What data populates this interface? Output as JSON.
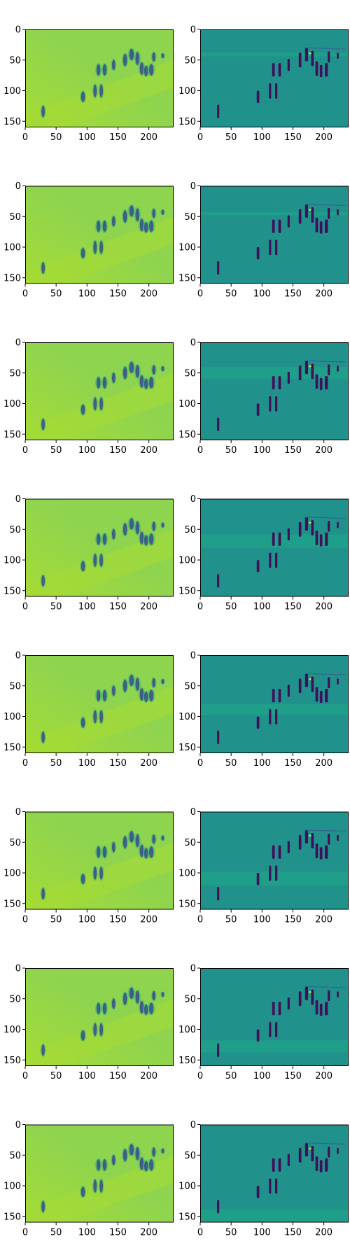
{
  "chart_data": {
    "type": "heatmap",
    "title": "",
    "xlabel": "",
    "ylabel": "",
    "colormap": "viridis",
    "image_shape": [
      160,
      240
    ],
    "xlim": [
      0,
      240
    ],
    "ylim": [
      160,
      0
    ],
    "x_ticks": [
      0,
      50,
      100,
      150,
      200
    ],
    "y_ticks": [
      0,
      50,
      100,
      150
    ],
    "x_tick_labels": [
      "0",
      "50",
      "100",
      "150",
      "200"
    ],
    "y_tick_labels": [
      "0",
      "50",
      "100",
      "150"
    ],
    "grid": false,
    "rows": 8,
    "cols": 2,
    "panels": [
      {
        "row": 0,
        "col": 0,
        "kind": "reconstruction",
        "band_y": null
      },
      {
        "row": 0,
        "col": 1,
        "kind": "residual",
        "band_y": [
          38,
          44
        ]
      },
      {
        "row": 1,
        "col": 0,
        "kind": "reconstruction",
        "band_y": null
      },
      {
        "row": 1,
        "col": 1,
        "kind": "residual",
        "band_y": [
          43,
          48
        ]
      },
      {
        "row": 2,
        "col": 0,
        "kind": "reconstruction",
        "band_y": null
      },
      {
        "row": 2,
        "col": 1,
        "kind": "residual",
        "band_y": [
          40,
          60
        ]
      },
      {
        "row": 3,
        "col": 0,
        "kind": "reconstruction",
        "band_y": null
      },
      {
        "row": 3,
        "col": 1,
        "kind": "residual",
        "band_y": [
          58,
          80
        ]
      },
      {
        "row": 4,
        "col": 0,
        "kind": "reconstruction",
        "band_y": null
      },
      {
        "row": 4,
        "col": 1,
        "kind": "residual",
        "band_y": [
          80,
          98
        ]
      },
      {
        "row": 5,
        "col": 0,
        "kind": "reconstruction",
        "band_y": null
      },
      {
        "row": 5,
        "col": 1,
        "kind": "residual",
        "band_y": [
          98,
          120
        ]
      },
      {
        "row": 6,
        "col": 0,
        "kind": "reconstruction",
        "band_y": null
      },
      {
        "row": 6,
        "col": 1,
        "kind": "residual",
        "band_y": [
          118,
          138
        ]
      },
      {
        "row": 7,
        "col": 0,
        "kind": "reconstruction",
        "band_y": null
      },
      {
        "row": 7,
        "col": 1,
        "kind": "residual",
        "band_y": [
          138,
          160
        ]
      }
    ],
    "colors": {
      "recon_bg": "#8fd44f",
      "recon_light": "#a5db36",
      "recon_fg": "#3e4a89",
      "recon_mid": "#35b779",
      "resid_bg": "#21918c",
      "resid_band": "#1f9e89",
      "resid_fg": "#440154",
      "resid_mid": "#31688e",
      "resid_hot": "#fde725"
    }
  }
}
